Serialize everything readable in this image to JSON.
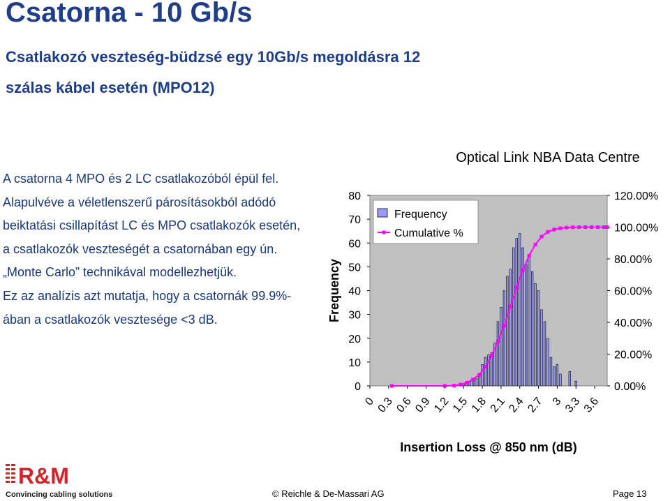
{
  "slide": {
    "title": "Csatorna - 10 Gb/s",
    "subtitle": "Csatlakozó veszteség-büdzsé egy 10Gb/s megoldásra 12 szálas kábel esetén (MPO12)",
    "body_lines": [
      "A csatorna 4 MPO és 2 LC csatlakozóból épül fel.",
      "Alapulvéve a véletlenszerű párosításokból adódó beiktatási csillapítást LC és MPO csatlakozók esetén, a csatlakozók veszteségét a csatornában egy ún. „Monte Carlo” technikával modellezhetjük.",
      "Ez az analízis azt mutatja, hogy a csatornák 99.9%-ában a csatlakozók vesztesége <3 dB."
    ]
  },
  "footer": {
    "logo_text": "R&M",
    "logo_tagline": "Convincing cabling solutions",
    "copyright": "© Reichle & De-Massari AG",
    "page": "Page 13"
  },
  "colors": {
    "title": "#1f3e8a",
    "body": "#1a3877",
    "plot_bg": "#c0c0c0",
    "bar_fill": "#9999ff",
    "cumulative_line": "#ff00ff",
    "logo_red": "#d2232a"
  },
  "chart_data": {
    "type": "bar",
    "title": "Optical Link NBA Data Centre",
    "xlabel": "Insertion Loss @ 850 nm (dB)",
    "ylabel": "Frequency",
    "ylim": [
      0,
      80
    ],
    "y2lim": [
      0,
      1.2
    ],
    "yticks": [
      "0",
      "10",
      "20",
      "30",
      "40",
      "50",
      "60",
      "70",
      "80"
    ],
    "y2ticks": [
      "0.00%",
      "20.00%",
      "40.00%",
      "60.00%",
      "80.00%",
      "100.00%",
      "120.00%"
    ],
    "xticks": [
      "0",
      "0.3",
      "0.6",
      "0.9",
      "1.2",
      "1.5",
      "1.8",
      "2.1",
      "2.4",
      "2.7",
      "3",
      "3.3",
      "3.6"
    ],
    "legend_position": "top-left",
    "grid": false,
    "bin_width": 0.05,
    "series": [
      {
        "name": "Frequency",
        "type": "bar",
        "x": [
          1.45,
          1.5,
          1.55,
          1.6,
          1.65,
          1.7,
          1.75,
          1.8,
          1.85,
          1.9,
          1.95,
          2.0,
          2.05,
          2.1,
          2.15,
          2.2,
          2.25,
          2.3,
          2.35,
          2.4,
          2.45,
          2.5,
          2.55,
          2.6,
          2.65,
          2.7,
          2.75,
          2.8,
          2.85,
          2.9,
          2.95,
          3.0,
          3.05,
          3.2,
          3.3
        ],
        "values": [
          1,
          1,
          1,
          2,
          3,
          3,
          4,
          9,
          12,
          13,
          14,
          18,
          27,
          33,
          40,
          46,
          49,
          58,
          62,
          64,
          58,
          51,
          54,
          48,
          43,
          40,
          32,
          27,
          20,
          12,
          8,
          9,
          5,
          6,
          2
        ]
      },
      {
        "name": "Cumulative %",
        "type": "line",
        "x": [
          0.35,
          1.2,
          1.35,
          1.45,
          1.55,
          1.65,
          1.75,
          1.85,
          1.95,
          2.05,
          2.15,
          2.25,
          2.35,
          2.45,
          2.55,
          2.65,
          2.75,
          2.85,
          2.95,
          3.05,
          3.15,
          3.25,
          3.35,
          3.45,
          3.55,
          3.65,
          3.75,
          3.8
        ],
        "values": [
          0,
          0,
          0.002,
          0.008,
          0.02,
          0.04,
          0.07,
          0.12,
          0.19,
          0.28,
          0.38,
          0.5,
          0.62,
          0.73,
          0.82,
          0.89,
          0.94,
          0.97,
          0.985,
          0.993,
          0.997,
          0.999,
          1.0,
          1.0,
          1.0,
          1.0,
          1.0,
          1.0
        ]
      }
    ]
  }
}
